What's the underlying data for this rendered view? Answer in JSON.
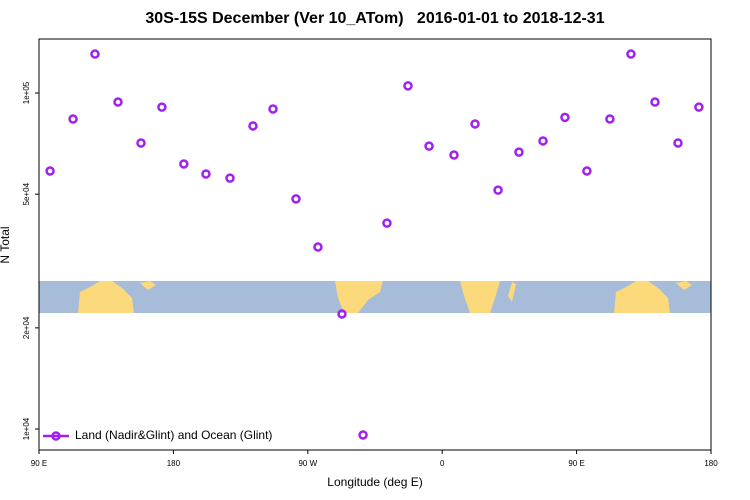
{
  "chart_data": {
    "type": "scatter",
    "title": "30S-15S December (Ver 10_ATom)   2016-01-01 to 2018-12-31",
    "x_label": "Longitude (deg E)",
    "y_label": "N Total",
    "xlim": [
      90,
      540
    ],
    "xticks": [
      {
        "value": 90,
        "label": "90 E"
      },
      {
        "value": 180,
        "label": "180"
      },
      {
        "value": 270,
        "label": "90 W"
      },
      {
        "value": 360,
        "label": "0"
      },
      {
        "value": 450,
        "label": "90 E"
      },
      {
        "value": 540,
        "label": "180"
      }
    ],
    "ylim": [
      8660,
      144800
    ],
    "log_y": true,
    "yticks": [
      {
        "value": 10000,
        "label": "1e+04"
      },
      {
        "value": 20000,
        "label": "2e+04"
      },
      {
        "value": 50000,
        "label": "5e+04"
      },
      {
        "value": 100000,
        "label": "1e+05"
      }
    ],
    "legend": "bottomleft",
    "series": [
      {
        "name": "Land (Nadir&Glint) and Ocean (Glint)",
        "color": "#a020f0",
        "x": [
          97.4,
          112.8,
          127.5,
          142.9,
          158.3,
          172.3,
          187.0,
          201.8,
          217.9,
          233.3,
          246.7,
          262.1,
          276.8,
          292.9,
          307.0,
          323.0,
          337.1,
          351.2,
          367.9,
          382.0,
          397.4,
          411.4,
          427.5,
          442.2,
          456.9,
          472.3,
          486.4,
          502.5,
          517.9,
          531.9
        ],
        "values": [
          58600,
          83700,
          130600,
          94000,
          71000,
          90800,
          61500,
          57400,
          55800,
          79800,
          89600,
          48400,
          34800,
          22000,
          9600,
          41000,
          105000,
          69500,
          65400,
          80900,
          51400,
          66700,
          72000,
          84600,
          58600,
          83700,
          130600,
          94000,
          71000,
          90800
        ]
      }
    ]
  }
}
